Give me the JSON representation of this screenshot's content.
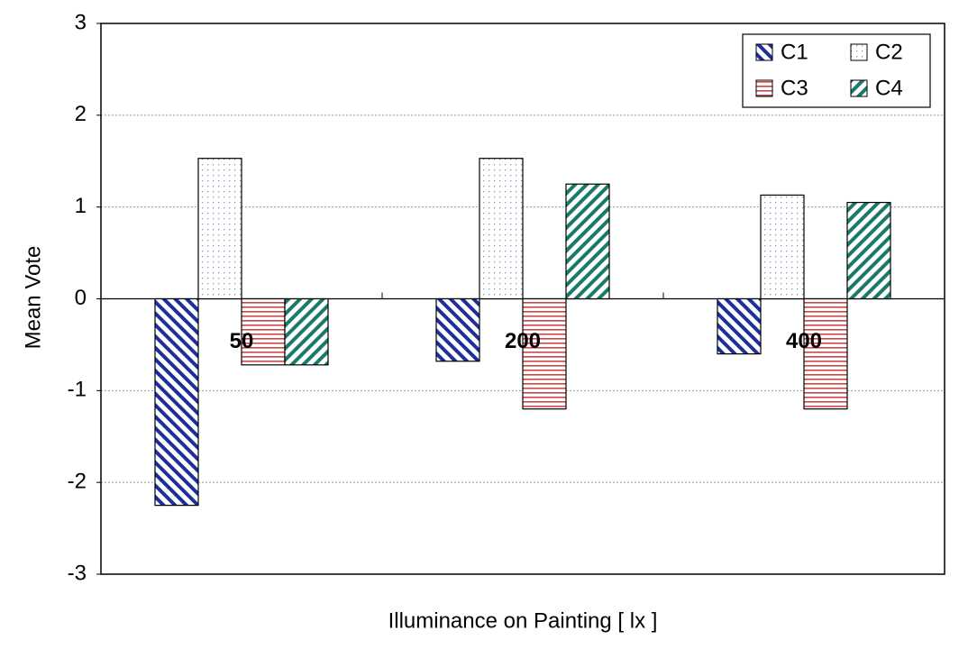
{
  "chart_data": {
    "type": "bar",
    "x_label": "Illuminance on Painting [ lx ]",
    "y_label": "Mean  Vote",
    "categories": [
      "50",
      "200",
      "400"
    ],
    "series": [
      {
        "name": "C1",
        "color": "#1f2f9a",
        "values": [
          -2.25,
          -0.68,
          -0.6
        ]
      },
      {
        "name": "C2",
        "color": "#7f9ab8",
        "values": [
          1.53,
          1.53,
          1.13
        ]
      },
      {
        "name": "C3",
        "color": "#d04545",
        "values": [
          -0.72,
          -1.2,
          -1.2
        ]
      },
      {
        "name": "C4",
        "color": "#1a7a6a",
        "values": [
          -0.72,
          1.25,
          1.05
        ]
      }
    ],
    "ylim": [
      -3,
      3
    ],
    "yticks": [
      -3,
      -2,
      -1,
      0,
      1,
      2,
      3
    ],
    "grid": true,
    "legend": "upper right"
  }
}
